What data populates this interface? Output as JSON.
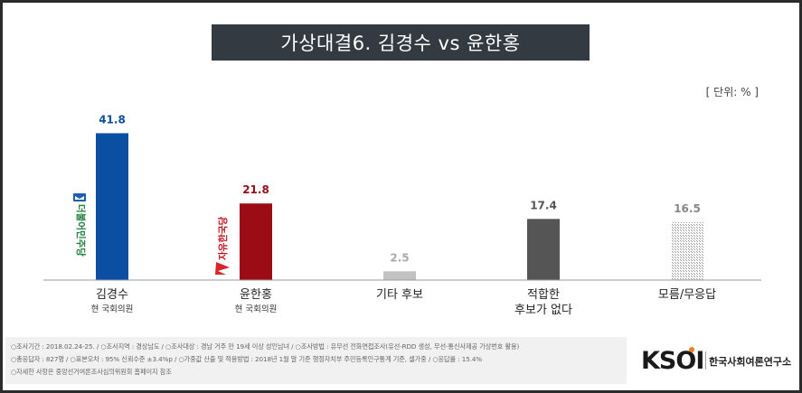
{
  "title": "가상대결6. 김경수 vs 윤한홍",
  "unit_label": "[ 단위: % ]",
  "chart_data": {
    "type": "bar",
    "categories": [
      "김경수",
      "윤한홍",
      "기타 후보",
      "적합한 후보가 없다",
      "모름/무응답"
    ],
    "category_lines": [
      [
        "김경수"
      ],
      [
        "윤한홍"
      ],
      [
        "기타 후보"
      ],
      [
        "적합한",
        "후보가 없다"
      ],
      [
        "모름/무응답"
      ]
    ],
    "sublabels": [
      "현 국회의원",
      "현 국회의원",
      "",
      "",
      ""
    ],
    "values": [
      41.8,
      21.8,
      2.5,
      17.4,
      16.5
    ],
    "value_labels": [
      "41.8",
      "21.8",
      "2.5",
      "17.4",
      "16.5"
    ],
    "colors": [
      "#0b4fa3",
      "#9b0c14",
      "#c2c2c2",
      "#555555",
      "hatch"
    ],
    "label_colors": [
      "#0b4fa3",
      "#9b0c14",
      "#aaaaaa",
      "#555555",
      "#888888"
    ],
    "ylim": [
      0,
      45
    ],
    "grid": false,
    "legend": "none"
  },
  "logos": {
    "party1": "더불어민주당",
    "party2": "자유한국당"
  },
  "footer": {
    "line1": "○조사기간 : 2018.02.24-25.  / ○조사지역 : 경상남도 / ○조사대상 : 경남 거주 만 19세 이상 성인남녀 / ○조사방법 : 유무선 전화면접조사(유선-RDD 생성, 무선-통신사제공 가상번호 활용)",
    "line2": "○총응답자 : 827명  / ○표본오차 : 95% 신뢰수준 ±3.4%p / ○가중값 산출 및 적용방법 : 2018년 1월 말 기준 행정자치부 주민등록인구통계 기준, 셀가중 / ○응답률 : 15.4%",
    "line3": "○자세한 사항은 중앙선거여론조사심의위원회 홈페이지 참조"
  },
  "brand": {
    "logo_text": "KSOI",
    "name": "한국사회여론연구소"
  }
}
